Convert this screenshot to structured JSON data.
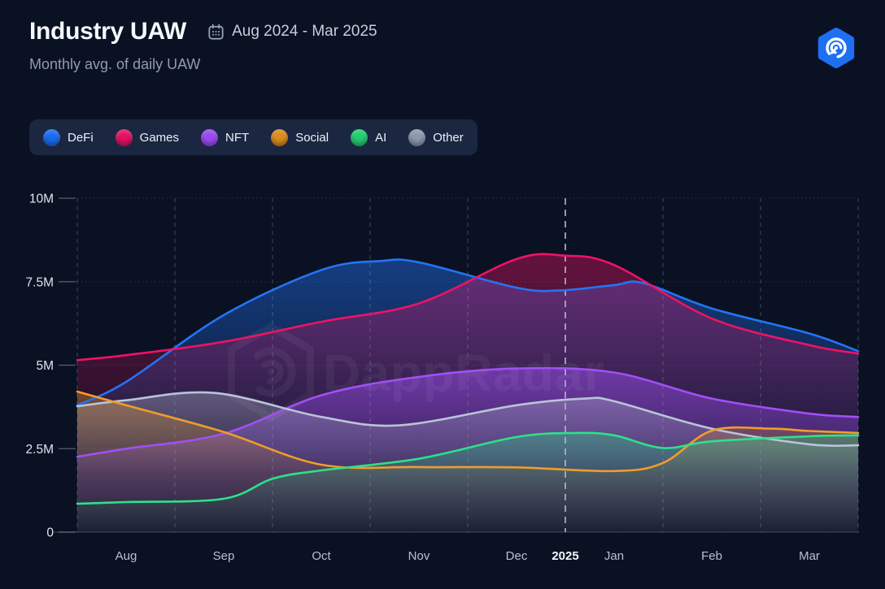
{
  "header": {
    "title": "Industry UAW",
    "date_range": "Aug 2024 - Mar 2025",
    "subtitle": "Monthly avg. of daily UAW"
  },
  "watermark": {
    "text": "DappRadar"
  },
  "legend": {
    "items": [
      {
        "id": "defi",
        "label": "DeFi",
        "color": "#1b6cf0"
      },
      {
        "id": "games",
        "label": "Games",
        "color": "#e51163"
      },
      {
        "id": "nft",
        "label": "NFT",
        "color": "#9b4af2"
      },
      {
        "id": "social",
        "label": "Social",
        "color": "#dd8c1e"
      },
      {
        "id": "ai",
        "label": "AI",
        "color": "#22ce72"
      },
      {
        "id": "other",
        "label": "Other",
        "color": "#8e99ad"
      }
    ]
  },
  "chart_data": {
    "type": "area",
    "title": "Industry UAW",
    "subtitle": "Monthly avg. of daily UAW",
    "date_range": "Aug 2024 - Mar 2025",
    "unit": "daily UAW (millions)",
    "legend_position": "top-left",
    "x_axis": {
      "months": [
        "Aug",
        "Sep",
        "Oct",
        "Nov",
        "Dec",
        "Jan",
        "Feb",
        "Mar"
      ],
      "year_label": "2025",
      "year_divider_between": [
        "Dec",
        "Jan"
      ]
    },
    "y_axis": {
      "range_m": [
        0,
        10
      ],
      "ticks": [
        {
          "label": "0",
          "value": 0
        },
        {
          "label": "2.5M",
          "value": 2.5
        },
        {
          "label": "5M",
          "value": 5
        },
        {
          "label": "7.5M",
          "value": 7.5
        },
        {
          "label": "10M",
          "value": 10
        }
      ]
    },
    "grid": {
      "vertical": "dashed",
      "horizontal": "dotted"
    },
    "series": [
      {
        "id": "defi",
        "name": "DeFi",
        "color": "#2474f5",
        "monthly_avg_uaw_m": [
          4.5,
          6.5,
          7.9,
          8.1,
          7.3,
          7.4,
          6.7,
          6.0
        ],
        "points": [
          [
            -0.5,
            3.8
          ],
          [
            0,
            4.5
          ],
          [
            1,
            6.5
          ],
          [
            2,
            7.85
          ],
          [
            2.6,
            8.12
          ],
          [
            3,
            8.08
          ],
          [
            4,
            7.32
          ],
          [
            4.45,
            7.24
          ],
          [
            5,
            7.4
          ],
          [
            5.3,
            7.46
          ],
          [
            6,
            6.7
          ],
          [
            7,
            5.95
          ],
          [
            7.5,
            5.42
          ]
        ]
      },
      {
        "id": "games",
        "name": "Games",
        "color": "#ee1365",
        "monthly_avg_uaw_m": [
          5.3,
          5.7,
          6.3,
          6.9,
          8.2,
          8.0,
          6.4,
          5.6
        ],
        "points": [
          [
            -0.5,
            5.15
          ],
          [
            0,
            5.3
          ],
          [
            1,
            5.7
          ],
          [
            2,
            6.3
          ],
          [
            3,
            6.85
          ],
          [
            4,
            8.18
          ],
          [
            4.5,
            8.28
          ],
          [
            5,
            8.0
          ],
          [
            6,
            6.4
          ],
          [
            7,
            5.6
          ],
          [
            7.5,
            5.35
          ]
        ]
      },
      {
        "id": "nft",
        "name": "NFT",
        "color": "#a14ff6",
        "monthly_avg_uaw_m": [
          2.5,
          3.0,
          4.1,
          4.7,
          4.9,
          4.8,
          4.0,
          3.6
        ],
        "points": [
          [
            -0.5,
            2.26
          ],
          [
            0,
            2.5
          ],
          [
            1,
            2.95
          ],
          [
            2,
            4.1
          ],
          [
            3,
            4.65
          ],
          [
            4,
            4.9
          ],
          [
            5,
            4.78
          ],
          [
            6,
            4.0
          ],
          [
            7,
            3.55
          ],
          [
            7.5,
            3.45
          ]
        ]
      },
      {
        "id": "other",
        "name": "Other",
        "color": "#b9c4d6",
        "monthly_avg_uaw_m": [
          3.9,
          4.2,
          3.5,
          3.2,
          3.8,
          3.9,
          3.1,
          2.6
        ],
        "points": [
          [
            -0.5,
            3.77
          ],
          [
            0,
            3.95
          ],
          [
            0.9,
            4.17
          ],
          [
            2,
            3.45
          ],
          [
            2.8,
            3.2
          ],
          [
            4,
            3.8
          ],
          [
            4.7,
            4.0
          ],
          [
            5,
            3.92
          ],
          [
            6,
            3.1
          ],
          [
            7,
            2.63
          ],
          [
            7.5,
            2.6
          ]
        ]
      },
      {
        "id": "social",
        "name": "Social",
        "color": "#f09d28",
        "monthly_avg_uaw_m": [
          3.8,
          3.0,
          2.0,
          1.95,
          1.95,
          1.85,
          3.0,
          3.0
        ],
        "points": [
          [
            -0.5,
            4.21
          ],
          [
            0,
            3.8
          ],
          [
            1,
            3.0
          ],
          [
            2,
            2.02
          ],
          [
            3,
            1.95
          ],
          [
            4,
            1.94
          ],
          [
            5,
            1.83
          ],
          [
            5.5,
            2.07
          ],
          [
            6,
            3.04
          ],
          [
            6.6,
            3.1
          ],
          [
            7,
            3.03
          ],
          [
            7.5,
            2.97
          ]
        ]
      },
      {
        "id": "ai",
        "name": "AI",
        "color": "#2ce287",
        "monthly_avg_uaw_m": [
          0.9,
          1.0,
          1.9,
          2.2,
          2.9,
          2.9,
          2.7,
          2.9
        ],
        "points": [
          [
            -0.5,
            0.85
          ],
          [
            0,
            0.9
          ],
          [
            1,
            1.0
          ],
          [
            1.5,
            1.6
          ],
          [
            2,
            1.85
          ],
          [
            3,
            2.2
          ],
          [
            4,
            2.85
          ],
          [
            4.6,
            2.97
          ],
          [
            5,
            2.9
          ],
          [
            5.5,
            2.52
          ],
          [
            6,
            2.72
          ],
          [
            7,
            2.87
          ],
          [
            7.5,
            2.9
          ]
        ]
      }
    ]
  }
}
